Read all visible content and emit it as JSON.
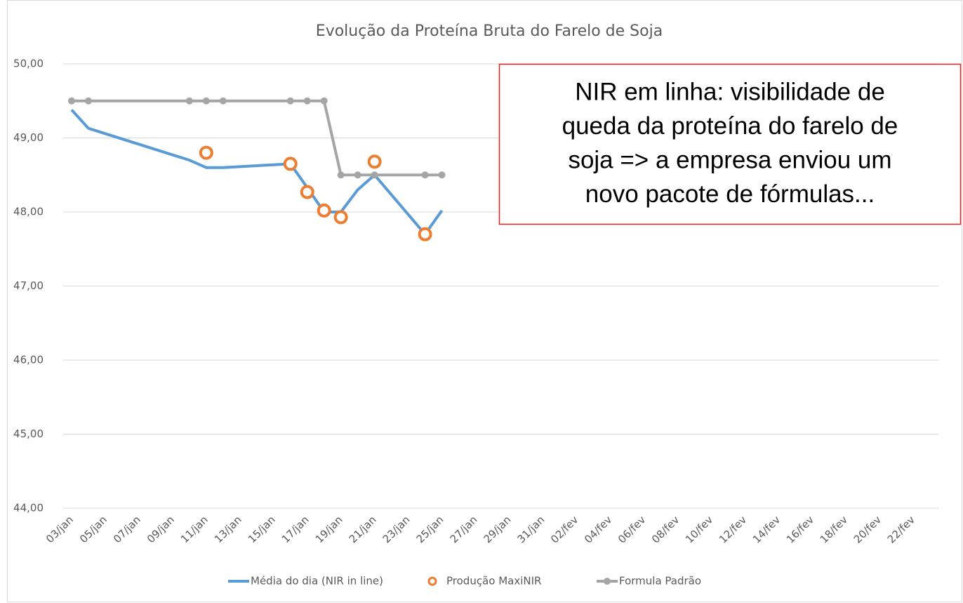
{
  "chart_data": {
    "type": "line",
    "title": "Evolução da Proteína Bruta do Farelo de Soja",
    "categories": [
      "03/jan",
      null,
      "05/jan",
      null,
      "07/jan",
      null,
      "09/jan",
      null,
      "11/jan",
      null,
      "13/jan",
      null,
      "15/jan",
      null,
      "17/jan",
      null,
      "19/jan",
      null,
      "21/jan",
      null,
      "23/jan",
      null,
      "25/jan",
      null,
      "27/jan",
      null,
      "29/jan",
      null,
      "31/jan",
      null,
      "02/fev",
      null,
      "04/fev",
      null,
      "06/fev",
      null,
      "08/fev",
      null,
      "10/fev",
      null,
      "12/fev",
      null,
      "14/fev",
      null,
      "16/fev",
      null,
      "18/fev",
      null,
      "20/fev",
      null,
      "22/fev",
      null
    ],
    "series": [
      {
        "name": "Média do dia (NIR in line)",
        "color": "#5b9bd5",
        "style": "line",
        "values": [
          49.38,
          49.13,
          null,
          null,
          null,
          null,
          null,
          48.7,
          48.6,
          48.6,
          null,
          null,
          null,
          48.65,
          48.33,
          48.0,
          48.0,
          48.3,
          48.5,
          null,
          null,
          47.7,
          48.02,
          null,
          null,
          null,
          null,
          null,
          null,
          null,
          null,
          null,
          null,
          null,
          null,
          null,
          null,
          null,
          null,
          null,
          null,
          null,
          null,
          null,
          null,
          null,
          null,
          null,
          null,
          null,
          null,
          null
        ]
      },
      {
        "name": "Produção MaxiNIR",
        "color": "#ed7d31",
        "style": "markers",
        "values": [
          null,
          null,
          null,
          null,
          null,
          null,
          null,
          null,
          48.8,
          null,
          null,
          null,
          null,
          48.65,
          48.27,
          48.02,
          47.93,
          null,
          48.68,
          null,
          null,
          47.7,
          null,
          null,
          null,
          null,
          null,
          null,
          null,
          null,
          null,
          null,
          null,
          null,
          null,
          null,
          null,
          null,
          null,
          null,
          null,
          null,
          null,
          null,
          null,
          null,
          null,
          null,
          null,
          null,
          null,
          null
        ]
      },
      {
        "name": "Formula Padrão",
        "color": "#a5a5a5",
        "style": "line-markers",
        "values": [
          49.5,
          49.5,
          null,
          null,
          null,
          null,
          null,
          49.5,
          49.5,
          49.5,
          null,
          null,
          null,
          49.5,
          49.5,
          49.5,
          48.5,
          48.5,
          48.5,
          null,
          null,
          48.5,
          48.5,
          null,
          null,
          null,
          null,
          null,
          null,
          null,
          null,
          null,
          null,
          null,
          null,
          null,
          null,
          null,
          null,
          null,
          null,
          null,
          null,
          null,
          null,
          null,
          null,
          null,
          null,
          null,
          null,
          null
        ]
      }
    ],
    "ylim": [
      44,
      50
    ],
    "yticks": [
      {
        "value": 44,
        "label": "44,00"
      },
      {
        "value": 45,
        "label": "45,00"
      },
      {
        "value": 46,
        "label": "46,00"
      },
      {
        "value": 47,
        "label": "47,00"
      },
      {
        "value": 48,
        "label": "48,00"
      },
      {
        "value": 49,
        "label": "49,00"
      },
      {
        "value": 50,
        "label": "50,00"
      }
    ],
    "grid": true,
    "legend": "bottom",
    "annotation": {
      "lines": [
        "NIR em linha: visibilidade de",
        "queda da proteína do farelo de",
        "soja => a empresa enviou um",
        "novo pacote de fórmulas..."
      ],
      "border_color": "#e02020"
    }
  }
}
